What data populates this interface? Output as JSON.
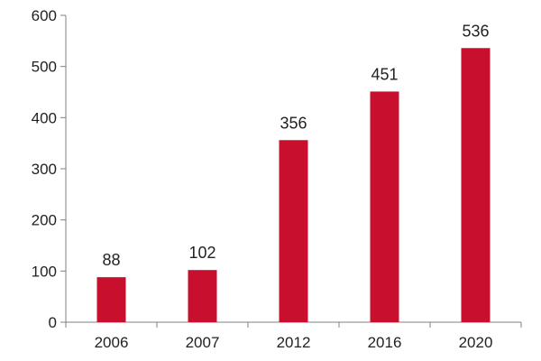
{
  "colors": {
    "bar": "#C8102E",
    "axis": "#808080",
    "text": "#222222"
  },
  "chart_data": {
    "type": "bar",
    "title": "",
    "xlabel": "",
    "ylabel": "",
    "categories": [
      "2006",
      "2007",
      "2012",
      "2016",
      "2020"
    ],
    "values": [
      88,
      102,
      356,
      451,
      536
    ],
    "data_labels": [
      "88",
      "102",
      "356",
      "451",
      "536"
    ],
    "ylim": [
      0,
      600
    ],
    "yticks": [
      0,
      100,
      200,
      300,
      400,
      500,
      600
    ],
    "ytick_labels": [
      "0",
      "100",
      "200",
      "300",
      "400",
      "500",
      "600"
    ],
    "grid": false,
    "legend": "none"
  }
}
